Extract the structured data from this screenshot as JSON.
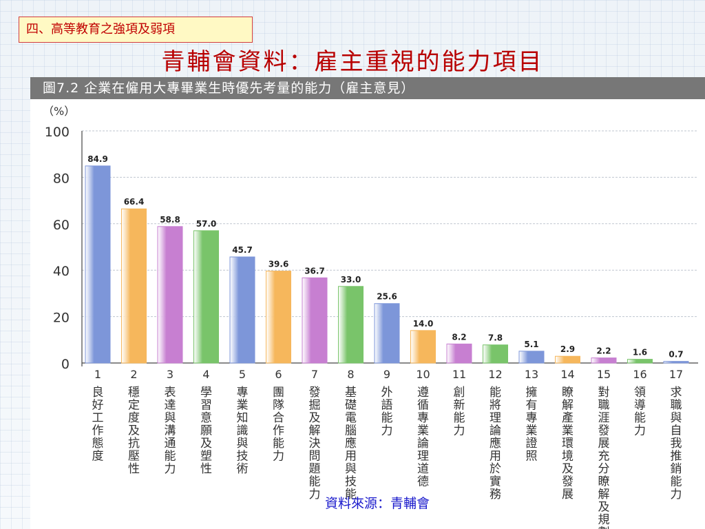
{
  "slide": {
    "section_label": "四、高等教育之強項及弱項",
    "title": "青輔會資料：雇主重視的能力項目",
    "source": "資料來源：青輔會"
  },
  "chart_data": {
    "type": "bar",
    "title": "圖7.2  企業在僱用大專畢業生時優先考量的能力（雇主意見）",
    "ylabel": "（%）",
    "xlabel": "",
    "ylim": [
      0,
      100
    ],
    "yticks": [
      0,
      20,
      40,
      60,
      80,
      100
    ],
    "grid": true,
    "categories": [
      "1",
      "2",
      "3",
      "4",
      "5",
      "6",
      "7",
      "8",
      "9",
      "10",
      "11",
      "12",
      "13",
      "14",
      "15",
      "16",
      "17"
    ],
    "category_names": [
      "良好工作態度",
      "穩定度及抗壓性",
      "表達與溝通能力",
      "學習意願及塑性",
      "專業知識與技術",
      "團隊合作能力",
      "發掘及解決問題能力",
      "基礎電腦應用與技能",
      "外語能力",
      "遵循專業論理道德",
      "創新能力",
      "能將理論應用於實務",
      "擁有專業證照",
      "瞭解產業環境及發展",
      "對職涯發展充分瞭解及規劃",
      "領導能力",
      "求職與自我推銷能力"
    ],
    "values": [
      84.9,
      66.4,
      58.8,
      57.0,
      45.7,
      39.6,
      36.7,
      33.0,
      25.6,
      14.0,
      8.2,
      7.8,
      5.1,
      2.9,
      2.2,
      1.6,
      0.7
    ],
    "value_labels": [
      "84.9",
      "66.4",
      "58.8",
      "57.0",
      "45.7",
      "39.6",
      "36.7",
      "33.0",
      "25.6",
      "14.0",
      "8.2",
      "7.8",
      "5.1",
      "2.9",
      "2.2",
      "1.6",
      "0.7"
    ],
    "colors": [
      "#7d96d9",
      "#f6b75c",
      "#c77fd1",
      "#79c46a"
    ]
  }
}
